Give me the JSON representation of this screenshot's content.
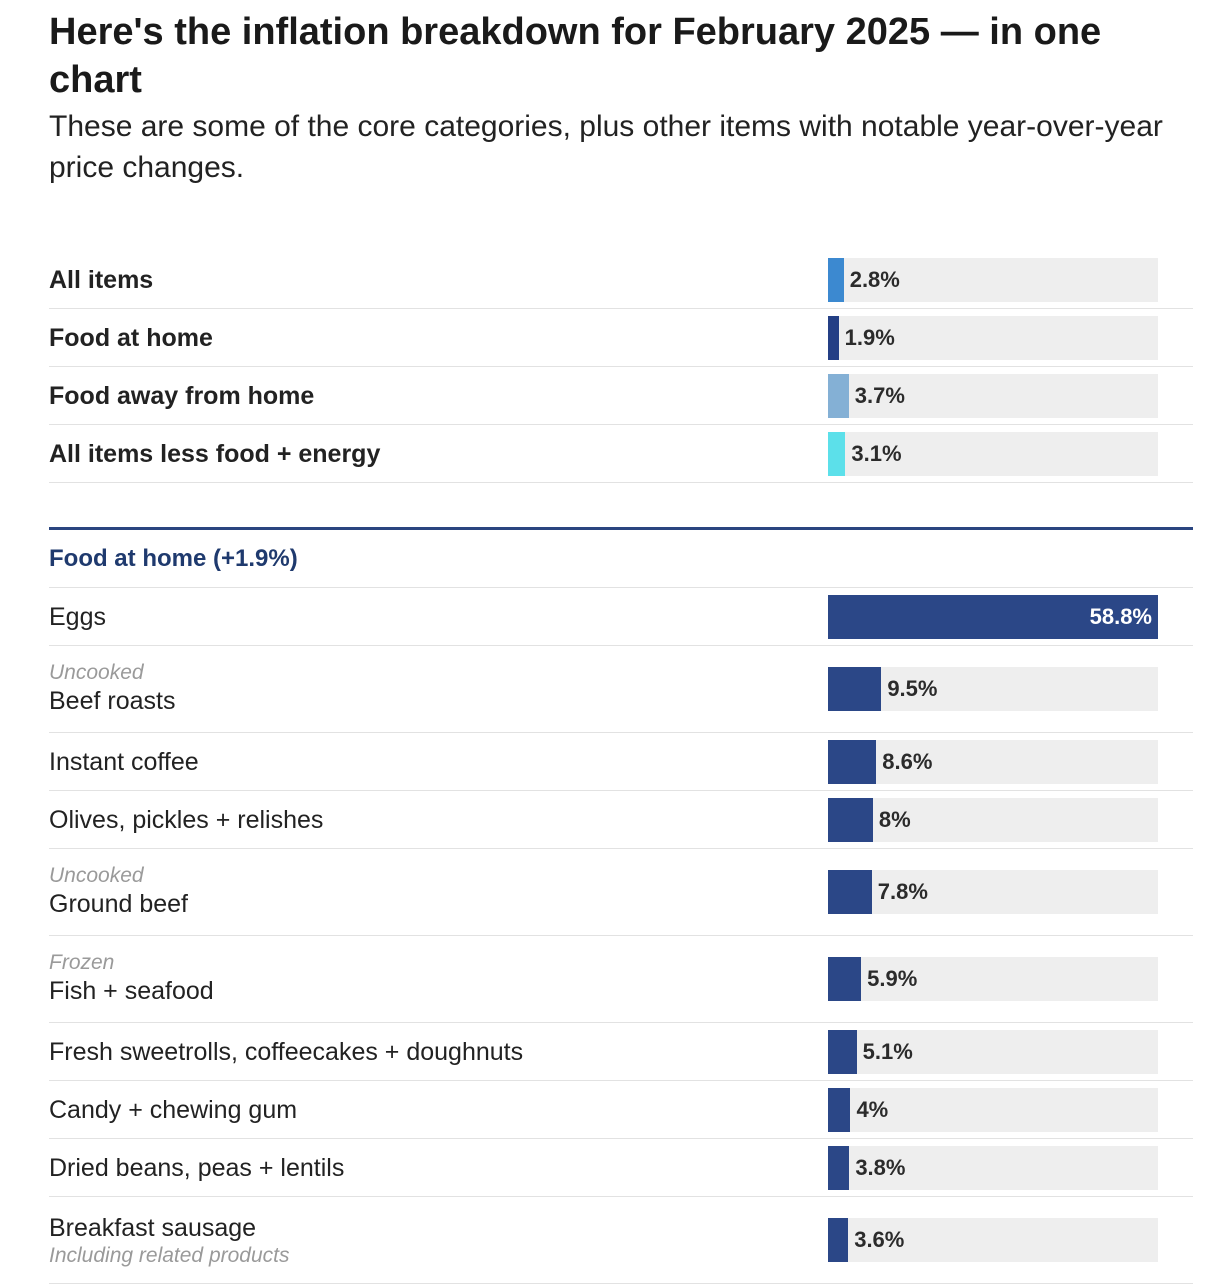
{
  "header": {
    "title": "Here's the inflation breakdown for February 2025 — in one chart",
    "subtitle": "These are some of the core categories, plus other items with notable year-over-year price changes."
  },
  "colors": {
    "food_at_home_bar": "#2b4787",
    "track": "#eeeeee",
    "section_rule": "#2a4580",
    "section_text": "#1f3a6e"
  },
  "chart_data": [
    {
      "type": "bar",
      "orientation": "horizontal",
      "categories": [
        "All items",
        "Food at home",
        "Food away from home",
        "All items less food + energy"
      ],
      "values": [
        2.8,
        1.9,
        3.7,
        3.1
      ],
      "value_labels": [
        "2.8%",
        "1.9%",
        "3.7%",
        "3.1%"
      ],
      "bar_colors": [
        "#3c89d0",
        "#243f85",
        "#84b0d5",
        "#5ce0ea"
      ],
      "xlim": [
        0,
        58.8
      ]
    },
    {
      "type": "bar",
      "orientation": "horizontal",
      "section_title": "Food at home (+1.9%)",
      "categories": [
        "Eggs",
        "Beef roasts",
        "Instant coffee",
        "Olives, pickles + relishes",
        "Ground beef",
        "Fish + seafood",
        "Fresh sweetrolls, coffeecakes + doughnuts",
        "Candy + chewing gum",
        "Dried beans, peas + lentils",
        "Breakfast sausage"
      ],
      "prefixes": [
        "",
        "Uncooked",
        "",
        "",
        "Uncooked",
        "Frozen",
        "",
        "",
        "",
        ""
      ],
      "suffixes": [
        "",
        "",
        "",
        "",
        "",
        "",
        "",
        "",
        "",
        "Including related products"
      ],
      "values": [
        58.8,
        9.5,
        8.6,
        8,
        7.8,
        5.9,
        5.1,
        4,
        3.8,
        3.6
      ],
      "value_labels": [
        "58.8%",
        "9.5%",
        "8.6%",
        "8%",
        "7.8%",
        "5.9%",
        "5.1%",
        "4%",
        "3.8%",
        "3.6%"
      ],
      "xlim": [
        0,
        58.8
      ]
    }
  ]
}
